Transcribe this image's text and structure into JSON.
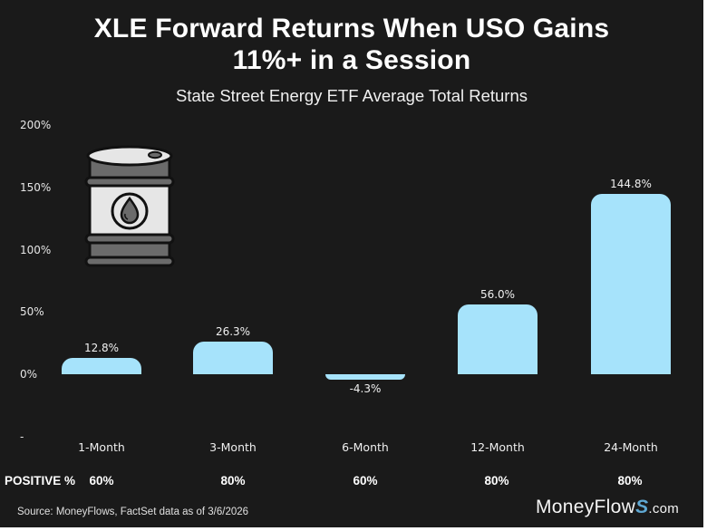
{
  "header": {
    "title_line1": "XLE Forward Returns When USO Gains",
    "title_line2": "11%+ in a Session",
    "subtitle": "State Street Energy ETF Average Total Returns"
  },
  "icon": {
    "name": "oil-barrel-icon"
  },
  "positive_row": {
    "label": "POSITIVE %",
    "values": [
      "60%",
      "80%",
      "60%",
      "80%",
      "80%"
    ]
  },
  "footer": {
    "source": "Source: MoneyFlows, FactSet data as of 3/6/2026",
    "brand_main": "MoneyFlow",
    "brand_accent": "S",
    "brand_suffix": ".com"
  },
  "colors": {
    "background": "#1a1a1a",
    "bar": "#a6e3fb",
    "text": "#f2f2f2",
    "brand_accent": "#5fa8d3"
  },
  "chart_data": {
    "type": "bar",
    "title": "XLE Forward Returns When USO Gains 11%+ in a Session",
    "subtitle": "State Street Energy ETF Average Total Returns",
    "categories": [
      "1-Month",
      "3-Month",
      "6-Month",
      "12-Month",
      "24-Month"
    ],
    "values": [
      12.8,
      26.3,
      -4.3,
      56.0,
      144.8
    ],
    "value_labels": [
      "12.8%",
      "26.3%",
      "-4.3%",
      "56.0%",
      "144.8%"
    ],
    "positive_pct": [
      60,
      80,
      60,
      80,
      80
    ],
    "xlabel": "",
    "ylabel": "",
    "yticks": [
      "-",
      "0%",
      "50%",
      "100%",
      "150%",
      "200%"
    ],
    "ylim": [
      -50,
      200
    ],
    "grid": false,
    "legend": "none"
  }
}
